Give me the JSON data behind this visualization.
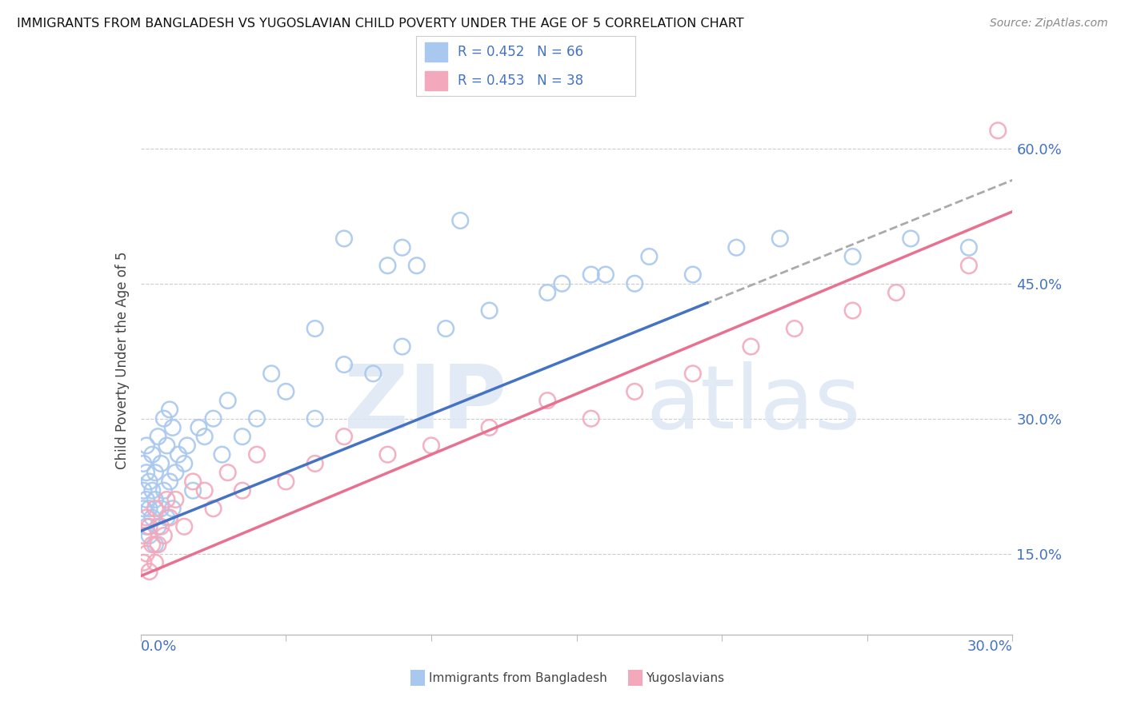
{
  "title": "IMMIGRANTS FROM BANGLADESH VS YUGOSLAVIAN CHILD POVERTY UNDER THE AGE OF 5 CORRELATION CHART",
  "source": "Source: ZipAtlas.com",
  "ylabel": "Child Poverty Under the Age of 5",
  "ytick_labels": [
    "15.0%",
    "30.0%",
    "45.0%",
    "60.0%"
  ],
  "ytick_values": [
    0.15,
    0.3,
    0.45,
    0.6
  ],
  "xmin": 0.0,
  "xmax": 0.3,
  "ymin": 0.06,
  "ymax": 0.67,
  "color_blue": "#A8C8F0",
  "color_pink": "#F4A8BB",
  "color_blue_text": "#4472C4",
  "color_pink_text": "#E87090",
  "blue_line_end": 0.195,
  "dash_line_start": 0.175,
  "blue_line_intercept": 0.175,
  "blue_line_slope": 1.3,
  "pink_line_intercept": 0.125,
  "pink_line_slope": 1.35,
  "blue_scatter_x": [
    0.001,
    0.001,
    0.001,
    0.002,
    0.002,
    0.002,
    0.002,
    0.003,
    0.003,
    0.003,
    0.004,
    0.004,
    0.004,
    0.005,
    0.005,
    0.005,
    0.006,
    0.006,
    0.007,
    0.007,
    0.008,
    0.008,
    0.009,
    0.009,
    0.01,
    0.01,
    0.011,
    0.011,
    0.012,
    0.013,
    0.015,
    0.016,
    0.018,
    0.02,
    0.022,
    0.025,
    0.028,
    0.03,
    0.035,
    0.04,
    0.045,
    0.05,
    0.06,
    0.07,
    0.08,
    0.09,
    0.105,
    0.12,
    0.14,
    0.16,
    0.175,
    0.19,
    0.205,
    0.22,
    0.245,
    0.265,
    0.285,
    0.09,
    0.095,
    0.145,
    0.155,
    0.17,
    0.06,
    0.07,
    0.085,
    0.11
  ],
  "blue_scatter_y": [
    0.2,
    0.22,
    0.25,
    0.18,
    0.21,
    0.24,
    0.27,
    0.17,
    0.2,
    0.23,
    0.19,
    0.22,
    0.26,
    0.16,
    0.21,
    0.24,
    0.18,
    0.28,
    0.2,
    0.25,
    0.22,
    0.3,
    0.19,
    0.27,
    0.23,
    0.31,
    0.2,
    0.29,
    0.24,
    0.26,
    0.25,
    0.27,
    0.22,
    0.29,
    0.28,
    0.3,
    0.26,
    0.32,
    0.28,
    0.3,
    0.35,
    0.33,
    0.3,
    0.36,
    0.35,
    0.38,
    0.4,
    0.42,
    0.44,
    0.46,
    0.48,
    0.46,
    0.49,
    0.5,
    0.48,
    0.5,
    0.49,
    0.49,
    0.47,
    0.45,
    0.46,
    0.45,
    0.4,
    0.5,
    0.47,
    0.52
  ],
  "pink_scatter_x": [
    0.001,
    0.001,
    0.002,
    0.002,
    0.003,
    0.003,
    0.004,
    0.005,
    0.005,
    0.006,
    0.007,
    0.008,
    0.009,
    0.01,
    0.012,
    0.015,
    0.018,
    0.022,
    0.025,
    0.03,
    0.035,
    0.04,
    0.05,
    0.06,
    0.07,
    0.085,
    0.1,
    0.12,
    0.14,
    0.155,
    0.17,
    0.19,
    0.21,
    0.225,
    0.245,
    0.26,
    0.285,
    0.295
  ],
  "pink_scatter_y": [
    0.14,
    0.17,
    0.15,
    0.19,
    0.13,
    0.18,
    0.16,
    0.14,
    0.2,
    0.16,
    0.18,
    0.17,
    0.21,
    0.19,
    0.21,
    0.18,
    0.23,
    0.22,
    0.2,
    0.24,
    0.22,
    0.26,
    0.23,
    0.25,
    0.28,
    0.26,
    0.27,
    0.29,
    0.32,
    0.3,
    0.33,
    0.35,
    0.38,
    0.4,
    0.42,
    0.44,
    0.47,
    0.62
  ]
}
